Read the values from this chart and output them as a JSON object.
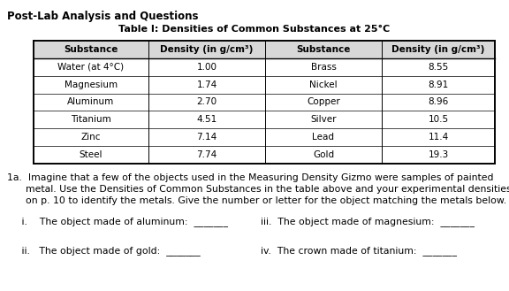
{
  "title_main": "Post-Lab Analysis and Questions",
  "table_title": "Table I: Densities of Common Substances at 25°C",
  "col_headers": [
    "Substance",
    "Density (in g/cm³)",
    "Substance",
    "Density (in g/cm³)"
  ],
  "rows": [
    [
      "Water (at 4°C)",
      "1.00",
      "Brass",
      "8.55"
    ],
    [
      "Magnesium",
      "1.74",
      "Nickel",
      "8.91"
    ],
    [
      "Aluminum",
      "2.70",
      "Copper",
      "8.96"
    ],
    [
      "Titanium",
      "4.51",
      "Silver",
      "10.5"
    ],
    [
      "Zinc",
      "7.14",
      "Lead",
      "11.4"
    ],
    [
      "Steel",
      "7.74",
      "Gold",
      "19.3"
    ]
  ],
  "q1a_line1": "1a.  Imagine that a few of the objects used in the Measuring Density Gizmo were samples of painted",
  "q1a_line2": "      metal. Use the Densities of Common Substances in the table above and your experimental densities",
  "q1a_line3": "      on p. 10 to identify the metals. Give the number or letter for the object matching the metals below.",
  "sq_left1": "   i.    The object made of aluminum:  _______",
  "sq_right1": "iii.  The object made of magnesium:  _______",
  "sq_left2": "   ii.   The object made of gold:  _______",
  "sq_right2": "iv.  The crown made of titanium:  _______",
  "bg_color": "#ffffff",
  "text_color": "#000000",
  "header_bg": "#d8d8d8"
}
